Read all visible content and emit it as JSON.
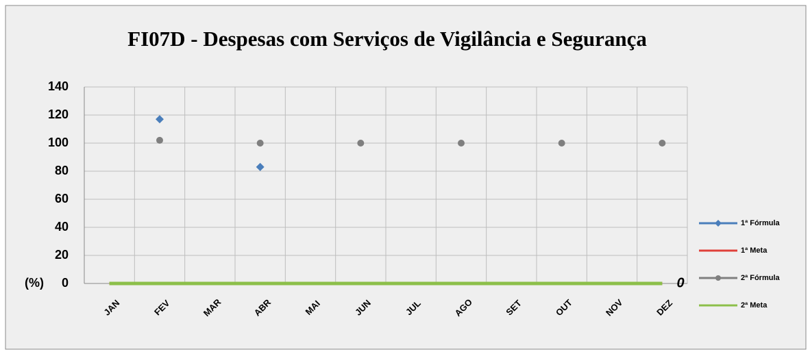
{
  "chart_data": {
    "type": "line",
    "title": "FI07D - Despesas com Serviços de Vigilância e Segurança",
    "y_label": "(%)",
    "categories": [
      "JAN",
      "FEV",
      "MAR",
      "ABR",
      "MAI",
      "JUN",
      "JUL",
      "AGO",
      "SET",
      "OUT",
      "NOV",
      "DEZ"
    ],
    "series": [
      {
        "name": "1ª Fórmula",
        "color": "#4a7ebb",
        "marker": "diamond",
        "values": [
          null,
          117,
          null,
          83,
          null,
          null,
          null,
          null,
          null,
          null,
          null,
          null
        ]
      },
      {
        "name": "1ª Meta",
        "color": "#e0403a",
        "marker": "none",
        "values": [
          0,
          0,
          0,
          0,
          0,
          0,
          0,
          0,
          0,
          0,
          0,
          0
        ]
      },
      {
        "name": "2ª Fórmula",
        "color": "#7f7f7f",
        "marker": "circle",
        "values": [
          null,
          102,
          null,
          100,
          null,
          100,
          null,
          100,
          null,
          100,
          null,
          100
        ]
      },
      {
        "name": "2ª Meta",
        "color": "#8cbf4a",
        "marker": "none",
        "values": [
          0,
          0,
          0,
          0,
          0,
          0,
          0,
          0,
          0,
          0,
          0,
          0
        ]
      }
    ],
    "annotations": [
      {
        "text": "0"
      }
    ],
    "ylim": [
      0,
      140
    ],
    "yticks": [
      0,
      20,
      40,
      60,
      80,
      100,
      120,
      140
    ],
    "grid": true,
    "legend": "right"
  }
}
